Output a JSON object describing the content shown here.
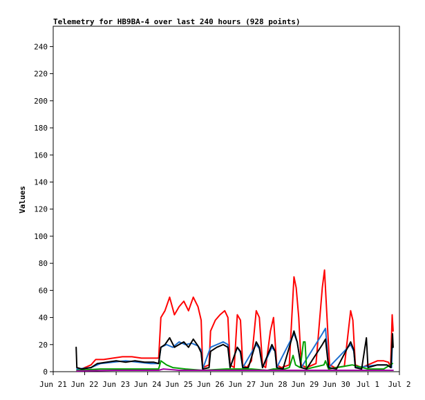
{
  "chart_data": {
    "type": "line",
    "title": "Telemetry for HB9BA-4 over last 240 hours (928 points)",
    "ylabel": "Values",
    "xlabel": "",
    "x_ticks": [
      "Jun 21",
      "Jun 22",
      "Jun 23",
      "Jun 24",
      "Jun 25",
      "Jun 26",
      "Jun 27",
      "Jun 28",
      "Jun 29",
      "Jun 30",
      "Jul 1",
      "Jul 2"
    ],
    "xlim": [
      0,
      11
    ],
    "x_unit": "days from Jun 21",
    "ylim": [
      0,
      255
    ],
    "y_ticks": [
      0,
      20,
      40,
      60,
      80,
      100,
      120,
      140,
      160,
      180,
      200,
      220,
      240
    ],
    "grid": false,
    "legend": "none",
    "series": [
      {
        "color": "#ff0000",
        "points": [
          [
            0.75,
            3
          ],
          [
            0.9,
            2
          ],
          [
            1.2,
            5
          ],
          [
            1.35,
            9
          ],
          [
            1.6,
            9
          ],
          [
            1.9,
            10
          ],
          [
            2.2,
            11
          ],
          [
            2.5,
            11
          ],
          [
            2.8,
            10
          ],
          [
            3.1,
            10
          ],
          [
            3.35,
            10
          ],
          [
            3.42,
            40
          ],
          [
            3.55,
            45
          ],
          [
            3.7,
            55
          ],
          [
            3.85,
            42
          ],
          [
            4.0,
            48
          ],
          [
            4.15,
            52
          ],
          [
            4.3,
            45
          ],
          [
            4.45,
            55
          ],
          [
            4.6,
            48
          ],
          [
            4.7,
            38
          ],
          [
            4.75,
            3
          ],
          [
            4.95,
            5
          ],
          [
            5.0,
            30
          ],
          [
            5.15,
            38
          ],
          [
            5.3,
            42
          ],
          [
            5.45,
            45
          ],
          [
            5.55,
            40
          ],
          [
            5.62,
            5
          ],
          [
            5.75,
            3
          ],
          [
            5.85,
            42
          ],
          [
            5.95,
            38
          ],
          [
            6.02,
            5
          ],
          [
            6.15,
            3
          ],
          [
            6.3,
            8
          ],
          [
            6.45,
            45
          ],
          [
            6.55,
            40
          ],
          [
            6.65,
            5
          ],
          [
            6.75,
            3
          ],
          [
            6.9,
            30
          ],
          [
            7.0,
            40
          ],
          [
            7.1,
            5
          ],
          [
            7.25,
            3
          ],
          [
            7.5,
            5
          ],
          [
            7.65,
            70
          ],
          [
            7.72,
            62
          ],
          [
            7.8,
            40
          ],
          [
            7.88,
            5
          ],
          [
            8.05,
            3
          ],
          [
            8.35,
            6
          ],
          [
            8.55,
            62
          ],
          [
            8.62,
            75
          ],
          [
            8.7,
            40
          ],
          [
            8.78,
            5
          ],
          [
            8.95,
            3
          ],
          [
            9.25,
            4
          ],
          [
            9.45,
            45
          ],
          [
            9.52,
            38
          ],
          [
            9.6,
            5
          ],
          [
            9.8,
            3
          ],
          [
            10.1,
            6
          ],
          [
            10.3,
            8
          ],
          [
            10.5,
            8
          ],
          [
            10.65,
            7
          ],
          [
            10.72,
            3
          ],
          [
            10.77,
            42
          ],
          [
            10.8,
            30
          ]
        ]
      },
      {
        "color": "#1e6fd0",
        "points": [
          [
            0.75,
            2
          ],
          [
            1.2,
            3
          ],
          [
            1.5,
            6
          ],
          [
            1.9,
            7
          ],
          [
            2.3,
            8
          ],
          [
            2.7,
            7
          ],
          [
            3.1,
            6
          ],
          [
            3.35,
            6
          ],
          [
            3.42,
            18
          ],
          [
            3.6,
            20
          ],
          [
            3.8,
            18
          ],
          [
            4.0,
            22
          ],
          [
            4.2,
            20
          ],
          [
            4.4,
            21
          ],
          [
            4.6,
            19
          ],
          [
            4.7,
            16
          ],
          [
            4.75,
            2
          ],
          [
            5.0,
            18
          ],
          [
            5.2,
            20
          ],
          [
            5.4,
            22
          ],
          [
            5.55,
            20
          ],
          [
            5.62,
            3
          ],
          [
            5.85,
            18
          ],
          [
            5.95,
            14
          ],
          [
            6.02,
            3
          ],
          [
            6.45,
            20
          ],
          [
            6.55,
            17
          ],
          [
            6.65,
            3
          ],
          [
            6.95,
            18
          ],
          [
            7.05,
            15
          ],
          [
            7.1,
            3
          ],
          [
            7.65,
            28
          ],
          [
            7.75,
            22
          ],
          [
            7.88,
            3
          ],
          [
            8.55,
            28
          ],
          [
            8.65,
            32
          ],
          [
            8.75,
            3
          ],
          [
            9.45,
            20
          ],
          [
            9.55,
            15
          ],
          [
            9.6,
            3
          ],
          [
            10.3,
            5
          ],
          [
            10.6,
            5
          ],
          [
            10.75,
            3
          ],
          [
            10.78,
            25
          ]
        ]
      },
      {
        "color": "#00a000",
        "points": [
          [
            0.75,
            1
          ],
          [
            1.5,
            2
          ],
          [
            2.5,
            2
          ],
          [
            3.35,
            2
          ],
          [
            3.42,
            8
          ],
          [
            3.6,
            5
          ],
          [
            3.8,
            3
          ],
          [
            4.2,
            2
          ],
          [
            4.75,
            1
          ],
          [
            5.5,
            2
          ],
          [
            6.3,
            2
          ],
          [
            6.8,
            1
          ],
          [
            7.0,
            2
          ],
          [
            7.35,
            2
          ],
          [
            7.5,
            3
          ],
          [
            7.62,
            12
          ],
          [
            7.7,
            5
          ],
          [
            7.85,
            3
          ],
          [
            7.95,
            22
          ],
          [
            8.0,
            22
          ],
          [
            8.05,
            2
          ],
          [
            8.6,
            5
          ],
          [
            8.65,
            8
          ],
          [
            8.75,
            2
          ],
          [
            9.5,
            5
          ],
          [
            10.0,
            2
          ],
          [
            10.5,
            2
          ],
          [
            10.78,
            6
          ]
        ]
      },
      {
        "color": "#a000a0",
        "points": [
          [
            0.75,
            0.5
          ],
          [
            2.0,
            1
          ],
          [
            3.35,
            1
          ],
          [
            3.5,
            2
          ],
          [
            4.0,
            1
          ],
          [
            5.0,
            1
          ],
          [
            6.0,
            1
          ],
          [
            7.0,
            1
          ],
          [
            8.0,
            1
          ],
          [
            9.0,
            1
          ],
          [
            10.0,
            1
          ],
          [
            10.8,
            1
          ]
        ]
      },
      {
        "color": "#000000",
        "points": [
          [
            0.73,
            18
          ],
          [
            0.75,
            3
          ],
          [
            0.9,
            2
          ],
          [
            1.2,
            3
          ],
          [
            1.4,
            6
          ],
          [
            1.7,
            7
          ],
          [
            2.0,
            8
          ],
          [
            2.3,
            7
          ],
          [
            2.6,
            8
          ],
          [
            2.9,
            7
          ],
          [
            3.2,
            7
          ],
          [
            3.35,
            6
          ],
          [
            3.42,
            18
          ],
          [
            3.55,
            20
          ],
          [
            3.7,
            25
          ],
          [
            3.85,
            18
          ],
          [
            4.0,
            20
          ],
          [
            4.15,
            22
          ],
          [
            4.3,
            18
          ],
          [
            4.45,
            24
          ],
          [
            4.6,
            19
          ],
          [
            4.7,
            14
          ],
          [
            4.75,
            2
          ],
          [
            4.95,
            3
          ],
          [
            5.0,
            15
          ],
          [
            5.2,
            18
          ],
          [
            5.4,
            20
          ],
          [
            5.55,
            18
          ],
          [
            5.62,
            3
          ],
          [
            5.85,
            18
          ],
          [
            5.95,
            15
          ],
          [
            6.02,
            3
          ],
          [
            6.2,
            3
          ],
          [
            6.45,
            22
          ],
          [
            6.55,
            18
          ],
          [
            6.65,
            3
          ],
          [
            6.95,
            20
          ],
          [
            7.05,
            15
          ],
          [
            7.1,
            3
          ],
          [
            7.3,
            2
          ],
          [
            7.65,
            30
          ],
          [
            7.75,
            22
          ],
          [
            7.88,
            3
          ],
          [
            8.05,
            2
          ],
          [
            8.55,
            20
          ],
          [
            8.65,
            24
          ],
          [
            8.75,
            3
          ],
          [
            9.0,
            2
          ],
          [
            9.45,
            22
          ],
          [
            9.55,
            16
          ],
          [
            9.6,
            3
          ],
          [
            9.8,
            2
          ],
          [
            9.95,
            25
          ],
          [
            10.0,
            3
          ],
          [
            10.3,
            5
          ],
          [
            10.6,
            5
          ],
          [
            10.73,
            3
          ],
          [
            10.78,
            28
          ],
          [
            10.8,
            18
          ]
        ]
      }
    ]
  }
}
